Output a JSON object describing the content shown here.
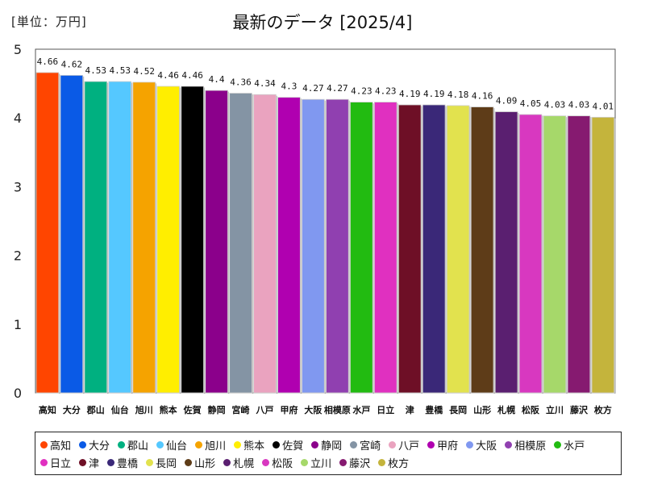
{
  "header": {
    "unit_label": "[単位：万円]",
    "title": "最新のデータ [2025/4]"
  },
  "chart_data": {
    "type": "bar",
    "title": "最新のデータ [2025/4]",
    "unit": "[単位：万円]",
    "xlabel": "",
    "ylabel": "",
    "ylim": [
      0,
      5
    ],
    "yticks": [
      0,
      1,
      2,
      3,
      4,
      5
    ],
    "grid": false,
    "legend_position": "bottom",
    "categories": [
      "高知",
      "大分",
      "郡山",
      "仙台",
      "旭川",
      "熊本",
      "佐賀",
      "静岡",
      "宮崎",
      "八戸",
      "甲府",
      "大阪",
      "相模原",
      "水戸",
      "日立",
      "津",
      "豊橋",
      "長岡",
      "山形",
      "札幌",
      "松阪",
      "立川",
      "藤沢",
      "枚方"
    ],
    "values": [
      4.66,
      4.62,
      4.53,
      4.53,
      4.52,
      4.46,
      4.46,
      4.4,
      4.36,
      4.34,
      4.3,
      4.27,
      4.27,
      4.23,
      4.23,
      4.19,
      4.19,
      4.18,
      4.16,
      4.09,
      4.05,
      4.03,
      4.03,
      4.01
    ],
    "value_labels": [
      "4.66",
      "4.62",
      "4.53",
      "4.53",
      "4.52",
      "4.46",
      "4.46",
      "4.4",
      "4.36",
      "4.34",
      "4.3",
      "4.27",
      "4.27",
      "4.23",
      "4.23",
      "4.19",
      "4.19",
      "4.18",
      "4.16",
      "4.09",
      "4.05",
      "4.03",
      "4.03",
      "4.01"
    ],
    "colors": [
      "#ff4500",
      "#0a5ae6",
      "#00b080",
      "#55c8ff",
      "#f5a300",
      "#ffee00",
      "#000000",
      "#8b008b",
      "#8494a4",
      "#eaa3bf",
      "#b000b0",
      "#8098f0",
      "#9040b0",
      "#22bb11",
      "#e030c0",
      "#6e0f26",
      "#3a2878",
      "#e2e24e",
      "#5e3c18",
      "#5a1f70",
      "#d838c0",
      "#a6d86a",
      "#861a70",
      "#c4b43c"
    ]
  }
}
